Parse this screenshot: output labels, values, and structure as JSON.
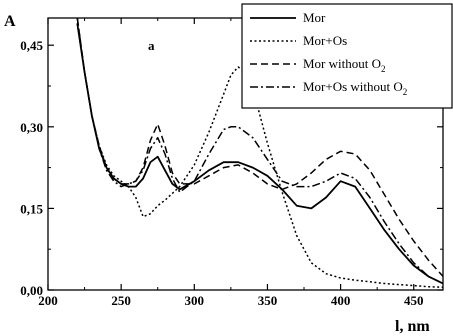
{
  "chart_data": {
    "type": "line",
    "xlabel": "l, nm",
    "ylabel": "A",
    "panel_label": "a",
    "xlim": [
      200,
      470
    ],
    "ylim": [
      0,
      0.5
    ],
    "xticks": [
      200,
      250,
      300,
      350,
      400,
      450
    ],
    "yticks": [
      0.0,
      0.15,
      0.3,
      0.45
    ],
    "xtick_labels": [
      "200",
      "250",
      "300",
      "350",
      "400",
      "450"
    ],
    "ytick_labels": [
      "0,00",
      "0,15",
      "0,30",
      "0,45"
    ],
    "grid": false,
    "legend_position": "top-right",
    "series": [
      {
        "name": "Mor",
        "legend_main": "Mor",
        "legend_sub": "",
        "legend_tail": "",
        "dash": "solid",
        "x": [
          220,
          225,
          230,
          235,
          240,
          245,
          250,
          255,
          260,
          265,
          270,
          275,
          280,
          285,
          290,
          300,
          310,
          320,
          330,
          340,
          350,
          360,
          370,
          380,
          390,
          400,
          410,
          420,
          430,
          440,
          450,
          460,
          470
        ],
        "y": [
          0.49,
          0.4,
          0.32,
          0.26,
          0.225,
          0.205,
          0.195,
          0.19,
          0.19,
          0.205,
          0.235,
          0.245,
          0.22,
          0.195,
          0.185,
          0.2,
          0.22,
          0.235,
          0.235,
          0.225,
          0.21,
          0.185,
          0.155,
          0.15,
          0.17,
          0.2,
          0.19,
          0.15,
          0.11,
          0.075,
          0.045,
          0.025,
          0.012
        ]
      },
      {
        "name": "Mor+Os",
        "legend_main": "Mor+Os",
        "legend_sub": "",
        "legend_tail": "",
        "dash": "dot",
        "x": [
          220,
          225,
          230,
          235,
          240,
          245,
          250,
          255,
          260,
          265,
          270,
          275,
          280,
          290,
          300,
          310,
          320,
          325,
          330,
          335,
          340,
          350,
          360,
          370,
          380,
          390,
          400,
          410,
          420,
          430,
          440,
          450,
          460,
          470
        ],
        "y": [
          0.49,
          0.4,
          0.32,
          0.265,
          0.23,
          0.21,
          0.2,
          0.19,
          0.17,
          0.135,
          0.14,
          0.155,
          0.165,
          0.19,
          0.23,
          0.29,
          0.36,
          0.395,
          0.41,
          0.4,
          0.37,
          0.27,
          0.18,
          0.1,
          0.05,
          0.03,
          0.022,
          0.018,
          0.015,
          0.012,
          0.01,
          0.008,
          0.006,
          0.005
        ]
      },
      {
        "name": "Mor without O2",
        "legend_main": "Mor without O",
        "legend_sub": "2",
        "legend_tail": "",
        "dash": "dash",
        "x": [
          220,
          225,
          230,
          235,
          240,
          245,
          250,
          255,
          260,
          265,
          270,
          275,
          280,
          285,
          290,
          300,
          310,
          320,
          330,
          340,
          350,
          360,
          370,
          380,
          390,
          400,
          410,
          420,
          430,
          440,
          450,
          460,
          470
        ],
        "y": [
          0.5,
          0.4,
          0.32,
          0.265,
          0.225,
          0.205,
          0.195,
          0.195,
          0.2,
          0.225,
          0.275,
          0.305,
          0.265,
          0.215,
          0.195,
          0.195,
          0.21,
          0.225,
          0.23,
          0.215,
          0.195,
          0.185,
          0.195,
          0.215,
          0.24,
          0.255,
          0.25,
          0.22,
          0.175,
          0.13,
          0.09,
          0.055,
          0.025
        ]
      },
      {
        "name": "Mor+Os without O2",
        "legend_main": "Mor+Os without O",
        "legend_sub": "2",
        "legend_tail": "",
        "dash": "dashdot",
        "x": [
          220,
          225,
          230,
          235,
          240,
          245,
          250,
          255,
          260,
          265,
          270,
          275,
          280,
          285,
          290,
          300,
          310,
          320,
          325,
          330,
          340,
          350,
          360,
          370,
          380,
          390,
          400,
          410,
          420,
          430,
          440,
          450,
          460,
          470
        ],
        "y": [
          0.5,
          0.4,
          0.32,
          0.26,
          0.22,
          0.2,
          0.19,
          0.195,
          0.2,
          0.22,
          0.26,
          0.28,
          0.25,
          0.205,
          0.18,
          0.2,
          0.25,
          0.295,
          0.3,
          0.3,
          0.28,
          0.24,
          0.2,
          0.19,
          0.19,
          0.2,
          0.215,
          0.205,
          0.17,
          0.125,
          0.085,
          0.05,
          0.025,
          0.012
        ]
      }
    ]
  }
}
